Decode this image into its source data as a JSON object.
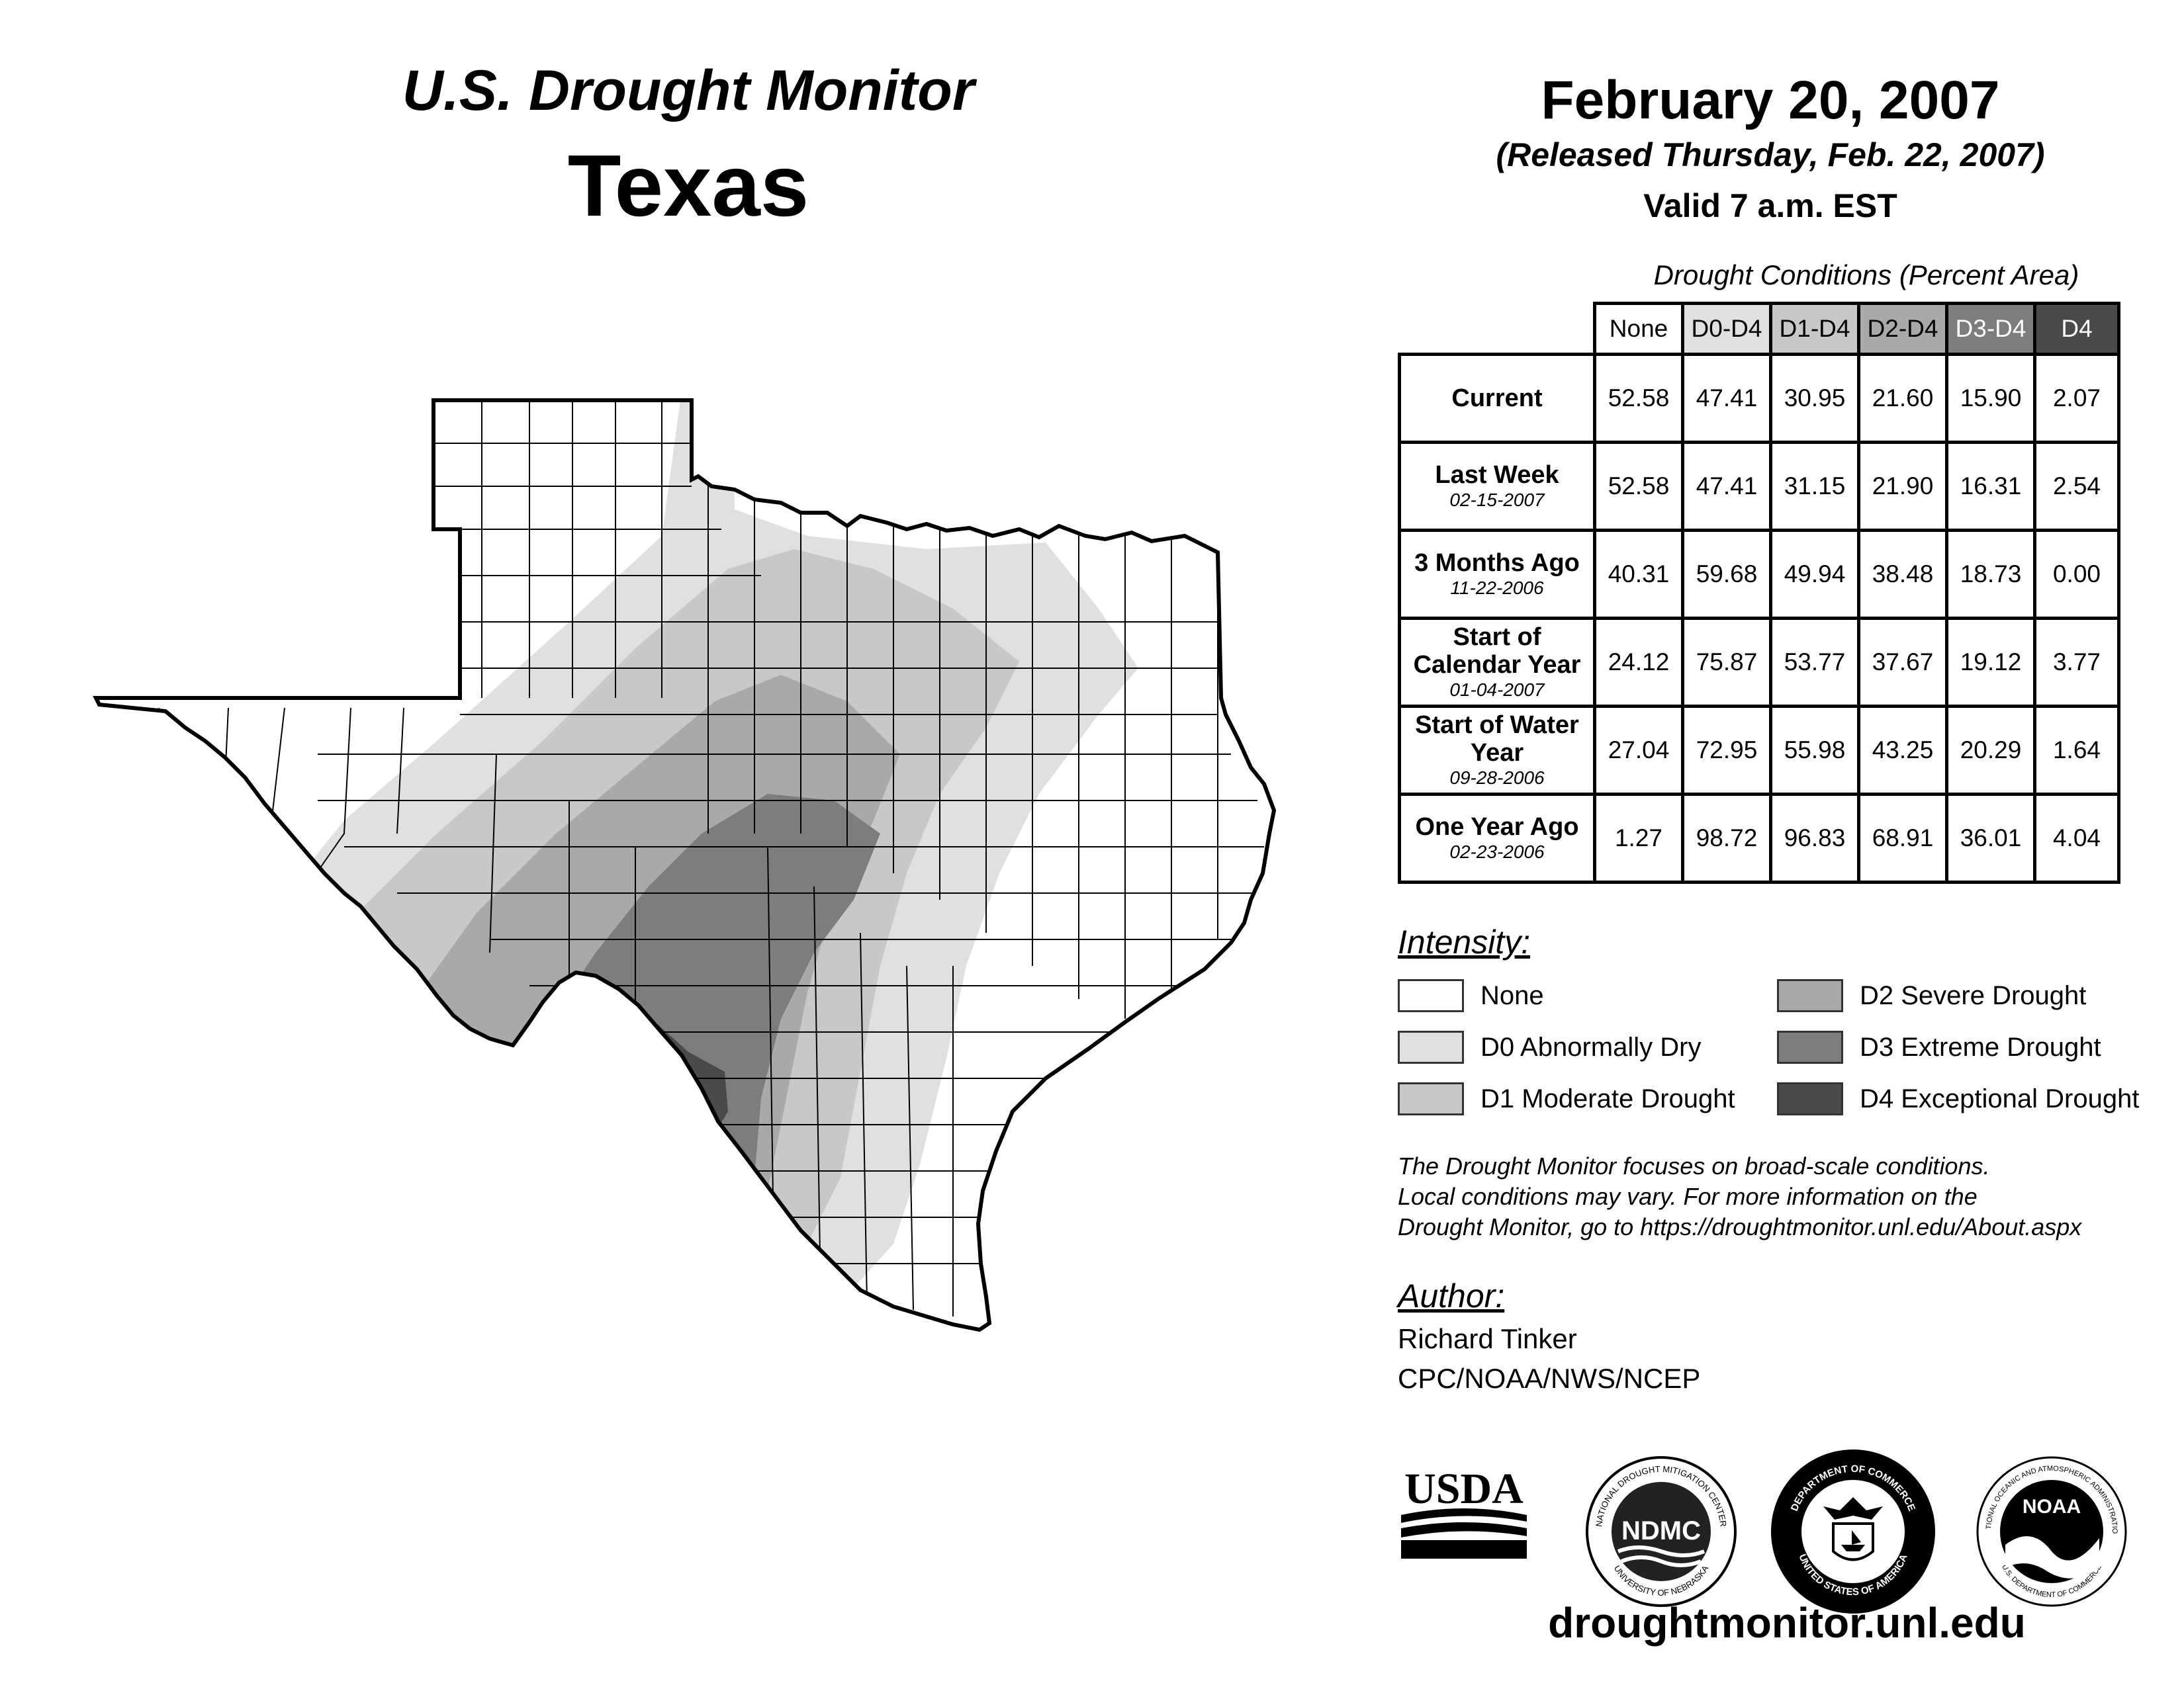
{
  "header": {
    "title": "U.S. Drought Monitor",
    "state": "Texas",
    "date": "February 20, 2007",
    "released": "(Released Thursday, Feb. 22, 2007)",
    "valid": "Valid 7 a.m. EST"
  },
  "table": {
    "caption": "Drought Conditions (Percent Area)",
    "columns": [
      "None",
      "D0-D4",
      "D1-D4",
      "D2-D4",
      "D3-D4",
      "D4"
    ],
    "rows": [
      {
        "label": "Current",
        "date": "",
        "values": [
          "52.58",
          "47.41",
          "30.95",
          "21.60",
          "15.90",
          "2.07"
        ]
      },
      {
        "label": "Last Week",
        "date": "02-15-2007",
        "values": [
          "52.58",
          "47.41",
          "31.15",
          "21.90",
          "16.31",
          "2.54"
        ]
      },
      {
        "label": "3 Months Ago",
        "date": "11-22-2006",
        "values": [
          "40.31",
          "59.68",
          "49.94",
          "38.48",
          "18.73",
          "0.00"
        ]
      },
      {
        "label": "Start of Calendar Year",
        "date": "01-04-2007",
        "values": [
          "24.12",
          "75.87",
          "53.77",
          "37.67",
          "19.12",
          "3.77"
        ]
      },
      {
        "label": "Start of Water Year",
        "date": "09-28-2006",
        "values": [
          "27.04",
          "72.95",
          "55.98",
          "43.25",
          "20.29",
          "1.64"
        ]
      },
      {
        "label": "One Year Ago",
        "date": "02-23-2006",
        "values": [
          "1.27",
          "98.72",
          "96.83",
          "68.91",
          "36.01",
          "4.04"
        ]
      }
    ]
  },
  "legend": {
    "heading": "Intensity:",
    "items": [
      {
        "label": "None",
        "color": "#ffffff"
      },
      {
        "label": "D0 Abnormally Dry",
        "color": "#e0e0e0"
      },
      {
        "label": "D1 Moderate Drought",
        "color": "#c8c8c8"
      },
      {
        "label": "D2 Severe Drought",
        "color": "#a9a9a9"
      },
      {
        "label": "D3 Extreme Drought",
        "color": "#7d7d7d"
      },
      {
        "label": "D4 Exceptional Drought",
        "color": "#4a4a4a"
      }
    ]
  },
  "note": {
    "line1": "The Drought Monitor focuses on broad-scale conditions.",
    "line2": "Local conditions may vary. For more information on the",
    "line3": "Drought Monitor, go to https://droughtmonitor.unl.edu/About.aspx"
  },
  "author": {
    "heading": "Author:",
    "name": "Richard Tinker",
    "org": "CPC/NOAA/NWS/NCEP"
  },
  "logos": {
    "usda": "USDA",
    "ndmc": "NDMC",
    "ndmc_ring_top": "NATIONAL DROUGHT MITIGATION CENTER",
    "ndmc_ring_bottom": "UNIVERSITY OF NEBRASKA",
    "doc_ring_top": "DEPARTMENT OF COMMERCE",
    "doc_ring_bottom": "UNITED STATES OF AMERICA",
    "noaa": "NOAA",
    "noaa_ring_top": "NATIONAL OCEANIC AND ATMOSPHERIC ADMINISTRATION",
    "noaa_ring_bottom": "U.S. DEPARTMENT OF COMMERCE"
  },
  "footer": {
    "url": "droughtmonitor.unl.edu"
  }
}
